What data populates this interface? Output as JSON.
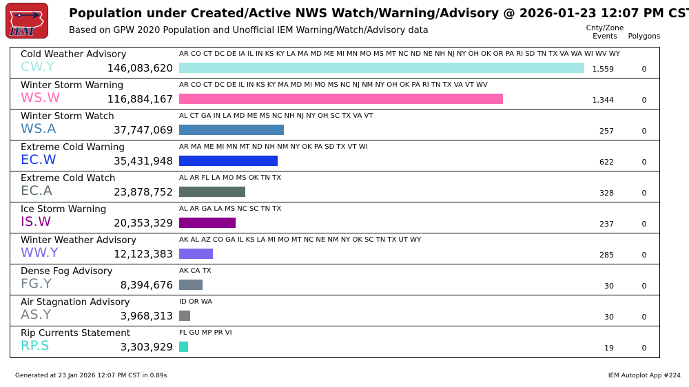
{
  "chart_data": {
    "type": "bar",
    "orientation": "horizontal",
    "title": "Population under Created/Active NWS Watch/Warning/Advisory @ 2026-01-23 12:07 PM CST",
    "subtitle": "Based on GPW 2020 Population and Unofficial IEM Warning/Watch/Advisory data",
    "max_value": 146083620,
    "rows": [
      {
        "name": "Cold Weather Advisory",
        "code": "CW.Y",
        "population": 146083620,
        "population_label": "146,083,620",
        "states": "AR CO CT DC DE IA IL IN KS KY LA MA MD ME MI MN MO MS MT NC ND NE NH NJ NY OH OK OR PA RI SD TN TX VA WA WI WV WY",
        "events": "1,559",
        "polygons": "0",
        "color": "#a4e7e4"
      },
      {
        "name": "Winter Storm Warning",
        "code": "WS.W",
        "population": 116884167,
        "population_label": "116,884,167",
        "states": "AR CO CT DC DE IL IN KS KY MA MD MI MO MS NC NJ NM NY OH OK PA RI TN TX VA VT WV",
        "events": "1,344",
        "polygons": "0",
        "color": "#ff69b4"
      },
      {
        "name": "Winter Storm Watch",
        "code": "WS.A",
        "population": 37747069,
        "population_label": "37,747,069",
        "states": "AL CT GA IN LA MD ME MS NC NH NJ NY OH SC TX VA VT",
        "events": "257",
        "polygons": "0",
        "color": "#4682b4"
      },
      {
        "name": "Extreme Cold Warning",
        "code": "EC.W",
        "population": 35431948,
        "population_label": "35,431,948",
        "states": "AR MA ME MI MN MT ND NH NM NY OK PA SD TX VT WI",
        "events": "622",
        "polygons": "0",
        "color": "#1438e8"
      },
      {
        "name": "Extreme Cold Watch",
        "code": "EC.A",
        "population": 23878752,
        "population_label": "23,878,752",
        "states": "AL AR FL LA MO MS OK TN TX",
        "events": "328",
        "polygons": "0",
        "color": "#5a6f66"
      },
      {
        "name": "Ice Storm Warning",
        "code": "IS.W",
        "population": 20353329,
        "population_label": "20,353,329",
        "states": "AL AR GA LA MS NC SC TN TX",
        "events": "237",
        "polygons": "0",
        "color": "#8b008b"
      },
      {
        "name": "Winter Weather Advisory",
        "code": "WW.Y",
        "population": 12123383,
        "population_label": "12,123,383",
        "states": "AK AL AZ CO GA IL KS LA MI MO MT NC NE NM NY OK SC TN TX UT WY",
        "events": "285",
        "polygons": "0",
        "color": "#7b68ee"
      },
      {
        "name": "Dense Fog Advisory",
        "code": "FG.Y",
        "population": 8394676,
        "population_label": "8,394,676",
        "states": "AK CA TX",
        "events": "30",
        "polygons": "0",
        "color": "#708090"
      },
      {
        "name": "Air Stagnation Advisory",
        "code": "AS.Y",
        "population": 3968313,
        "population_label": "3,968,313",
        "states": "ID OR WA",
        "events": "30",
        "polygons": "0",
        "color": "#808080"
      },
      {
        "name": "Rip Currents Statement",
        "code": "RP.S",
        "population": 3303929,
        "population_label": "3,303,929",
        "states": "FL GU MP PR VI",
        "events": "19",
        "polygons": "0",
        "color": "#3bd6c6"
      }
    ]
  },
  "columns": {
    "events_line1": "Cnty/Zone",
    "events_line2": "Events",
    "polygons": "Polygons"
  },
  "logo": {
    "text": "IEM",
    "background": "#c5262e"
  },
  "footer": {
    "generated": "Generated at 23 Jan 2026 12:07 PM CST in 0.89s",
    "app": "IEM Autoplot App #224"
  }
}
